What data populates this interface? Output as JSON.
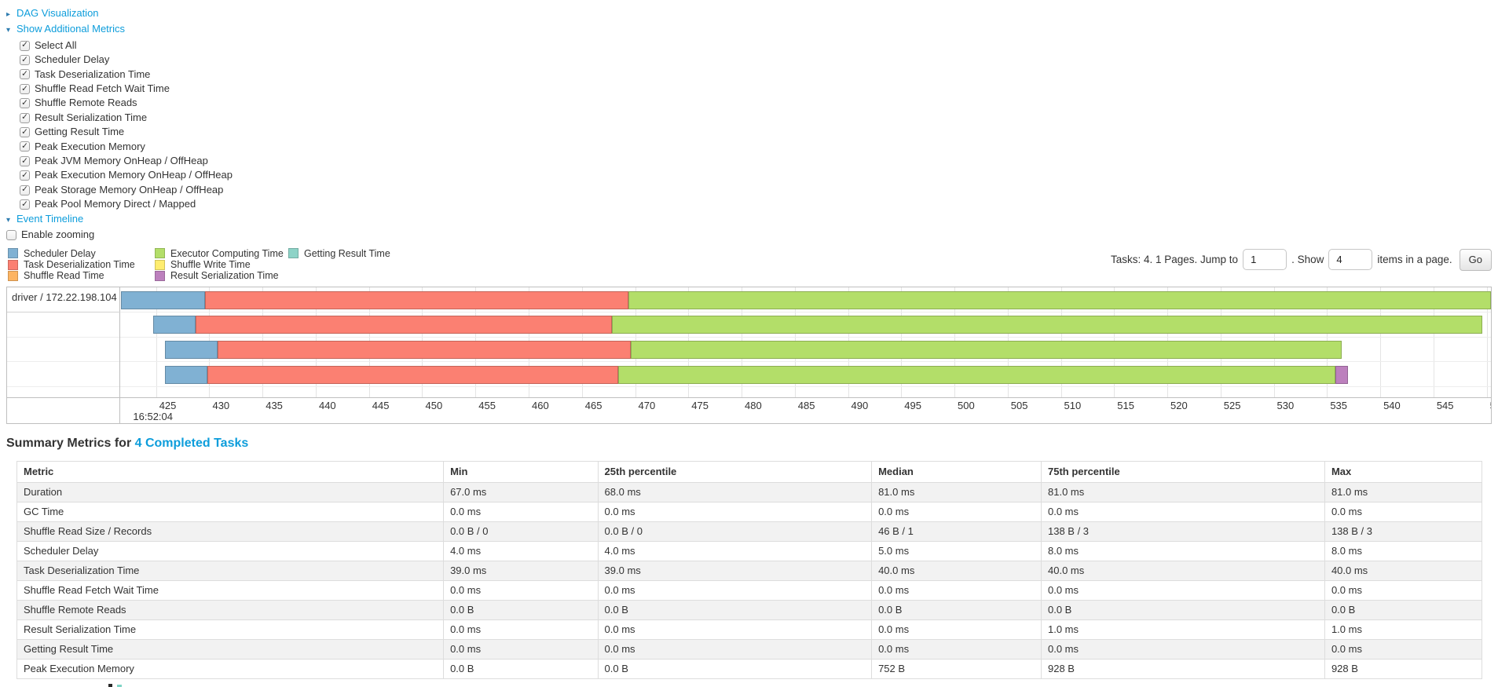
{
  "colors": {
    "link": "#0d9ddb",
    "text": "#333333",
    "zebra": "#f2f2f2",
    "table_border": "#dddddd"
  },
  "dag_section": {
    "label": "DAG Visualization"
  },
  "metrics_section": {
    "label": "Show Additional Metrics",
    "checkboxes": [
      {
        "label": "Select All",
        "checked": true
      },
      {
        "label": "Scheduler Delay",
        "checked": true
      },
      {
        "label": "Task Deserialization Time",
        "checked": true
      },
      {
        "label": "Shuffle Read Fetch Wait Time",
        "checked": true
      },
      {
        "label": "Shuffle Remote Reads",
        "checked": true
      },
      {
        "label": "Result Serialization Time",
        "checked": true
      },
      {
        "label": "Getting Result Time",
        "checked": true
      },
      {
        "label": "Peak Execution Memory",
        "checked": true
      },
      {
        "label": "Peak JVM Memory OnHeap / OffHeap",
        "checked": true
      },
      {
        "label": "Peak Execution Memory OnHeap / OffHeap",
        "checked": true
      },
      {
        "label": "Peak Storage Memory OnHeap / OffHeap",
        "checked": true
      },
      {
        "label": "Peak Pool Memory Direct / Mapped",
        "checked": true
      }
    ]
  },
  "event_timeline_section": {
    "label": "Event Timeline",
    "enable_zooming": {
      "label": "Enable zooming",
      "checked": false
    }
  },
  "legend": {
    "columns": [
      [
        {
          "label": "Scheduler Delay",
          "color": "#80B1D3"
        },
        {
          "label": "Task Deserialization Time",
          "color": "#FB8072"
        },
        {
          "label": "Shuffle Read Time",
          "color": "#FDB462"
        }
      ],
      [
        {
          "label": "Executor Computing Time",
          "color": "#B3DE69"
        },
        {
          "label": "Shuffle Write Time",
          "color": "#FFED6F"
        },
        {
          "label": "Result Serialization Time",
          "color": "#BC80BD"
        }
      ],
      [
        {
          "label": "Getting Result Time",
          "color": "#8DD3C7"
        }
      ]
    ]
  },
  "pagination": {
    "tasks_text": "Tasks: 4. 1 Pages. Jump to",
    "jump_value": "1",
    "mid_text": ". Show",
    "show_value": "4",
    "suffix_text": "items in a page.",
    "go_label": "Go"
  },
  "chart_data": {
    "type": "timeline",
    "group_label": "driver / 172.22.198.104",
    "axis": {
      "min": 421.7,
      "max": 550.4,
      "tick_start": 425,
      "tick_end": 550,
      "tick_step": 5,
      "unit": "ms",
      "start_time_label": "16:52:04"
    },
    "series_colors": {
      "scheduler_delay": "#80B1D3",
      "task_deserialization": "#FB8072",
      "shuffle_read": "#FDB462",
      "executor_computing": "#B3DE69",
      "shuffle_write": "#FFED6F",
      "result_serialization": "#BC80BD",
      "getting_result": "#8DD3C7"
    },
    "tasks": [
      {
        "segments": [
          {
            "name": "scheduler_delay",
            "start": 421.7,
            "end": 429.6
          },
          {
            "name": "task_deserialization",
            "start": 429.6,
            "end": 469.4
          },
          {
            "name": "executor_computing",
            "start": 469.4,
            "end": 550.4
          }
        ]
      },
      {
        "segments": [
          {
            "name": "scheduler_delay",
            "start": 424.7,
            "end": 428.7
          },
          {
            "name": "task_deserialization",
            "start": 428.7,
            "end": 467.8
          },
          {
            "name": "executor_computing",
            "start": 467.8,
            "end": 549.6
          }
        ]
      },
      {
        "segments": [
          {
            "name": "scheduler_delay",
            "start": 425.8,
            "end": 430.8
          },
          {
            "name": "task_deserialization",
            "start": 430.8,
            "end": 469.6
          },
          {
            "name": "executor_computing",
            "start": 469.6,
            "end": 536.4
          }
        ]
      },
      {
        "segments": [
          {
            "name": "scheduler_delay",
            "start": 425.8,
            "end": 429.8
          },
          {
            "name": "task_deserialization",
            "start": 429.8,
            "end": 468.4
          },
          {
            "name": "executor_computing",
            "start": 468.4,
            "end": 535.8
          },
          {
            "name": "result_serialization",
            "start": 535.8,
            "end": 537.0
          }
        ]
      }
    ]
  },
  "summary": {
    "heading_prefix": "Summary Metrics for",
    "heading_link": "4 Completed Tasks",
    "headers": [
      "Metric",
      "Min",
      "25th percentile",
      "Median",
      "75th percentile",
      "Max"
    ],
    "rows": [
      {
        "metric": "Duration",
        "values": [
          "67.0 ms",
          "68.0 ms",
          "81.0 ms",
          "81.0 ms",
          "81.0 ms"
        ]
      },
      {
        "metric": "GC Time",
        "values": [
          "0.0 ms",
          "0.0 ms",
          "0.0 ms",
          "0.0 ms",
          "0.0 ms"
        ]
      },
      {
        "metric": "Shuffle Read Size / Records",
        "values": [
          "0.0 B / 0",
          "0.0 B / 0",
          "46 B / 1",
          "138 B / 3",
          "138 B / 3"
        ]
      },
      {
        "metric": "Scheduler Delay",
        "values": [
          "4.0 ms",
          "4.0 ms",
          "5.0 ms",
          "8.0 ms",
          "8.0 ms"
        ]
      },
      {
        "metric": "Task Deserialization Time",
        "values": [
          "39.0 ms",
          "39.0 ms",
          "40.0 ms",
          "40.0 ms",
          "40.0 ms"
        ]
      },
      {
        "metric": "Shuffle Read Fetch Wait Time",
        "values": [
          "0.0 ms",
          "0.0 ms",
          "0.0 ms",
          "0.0 ms",
          "0.0 ms"
        ]
      },
      {
        "metric": "Shuffle Remote Reads",
        "values": [
          "0.0 B",
          "0.0 B",
          "0.0 B",
          "0.0 B",
          "0.0 B"
        ]
      },
      {
        "metric": "Result Serialization Time",
        "values": [
          "0.0 ms",
          "0.0 ms",
          "0.0 ms",
          "1.0 ms",
          "1.0 ms"
        ]
      },
      {
        "metric": "Getting Result Time",
        "values": [
          "0.0 ms",
          "0.0 ms",
          "0.0 ms",
          "0.0 ms",
          "0.0 ms"
        ]
      },
      {
        "metric": "Peak Execution Memory",
        "values": [
          "0.0 B",
          "0.0 B",
          "752 B",
          "928 B",
          "928 B"
        ]
      }
    ]
  }
}
